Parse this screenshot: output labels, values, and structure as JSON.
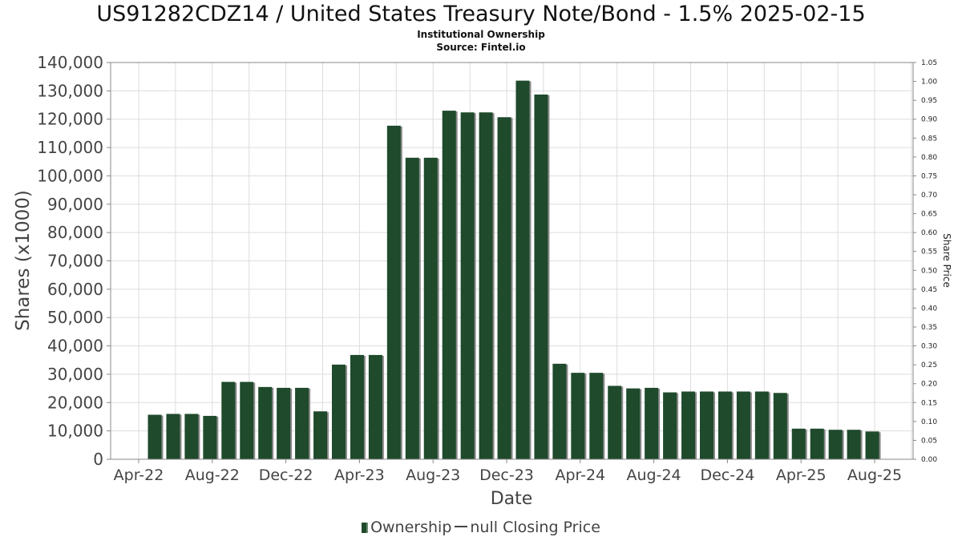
{
  "title": "US91282CDZ14 / United States Treasury Note/Bond - 1.5% 2025-02-15",
  "subtitle": "Institutional Ownership",
  "source": "Source: Fintel.io",
  "legend": {
    "ownership": "Ownership",
    "price": "null Closing Price"
  },
  "colors": {
    "bar": "#1f4a2c",
    "bar_shadow": "#8a8a8a",
    "grid": "#dddddd",
    "axis": "#888888"
  },
  "chart_data": {
    "type": "bar",
    "xlabel": "Date",
    "ylabel": "Shares (x1000)",
    "y2label": "Share Price",
    "ylim": [
      0,
      140000
    ],
    "y2lim": [
      0,
      1.05
    ],
    "yticks": [
      "0",
      "10,000",
      "20,000",
      "30,000",
      "40,000",
      "50,000",
      "60,000",
      "70,000",
      "80,000",
      "90,000",
      "100,000",
      "110,000",
      "120,000",
      "130,000",
      "140,000"
    ],
    "y2ticks": [
      "0.00",
      "0.05",
      "0.10",
      "0.15",
      "0.20",
      "0.25",
      "0.30",
      "0.35",
      "0.40",
      "0.45",
      "0.50",
      "0.55",
      "0.60",
      "0.65",
      "0.70",
      "0.75",
      "0.80",
      "0.85",
      "0.90",
      "0.95",
      "1.00",
      "1.05"
    ],
    "xticks": [
      "Apr-22",
      "Aug-22",
      "Dec-22",
      "Apr-23",
      "Aug-23",
      "Dec-23",
      "Apr-24",
      "Aug-24",
      "Dec-24",
      "Apr-25",
      "Aug-25"
    ],
    "grid": true,
    "legend_position": "bottom",
    "series": [
      {
        "name": "Ownership",
        "values": [
          15700,
          16000,
          16000,
          15300,
          27300,
          27300,
          25500,
          25200,
          25200,
          16900,
          33400,
          36800,
          36800,
          117700,
          106400,
          106400,
          123000,
          122400,
          122400,
          120700,
          133600,
          128700,
          33700,
          30500,
          30500,
          25900,
          25000,
          25200,
          23600,
          23900,
          23900,
          23900,
          23900,
          23900,
          23400,
          10800,
          10800,
          10400,
          10400,
          9800
        ]
      }
    ]
  }
}
